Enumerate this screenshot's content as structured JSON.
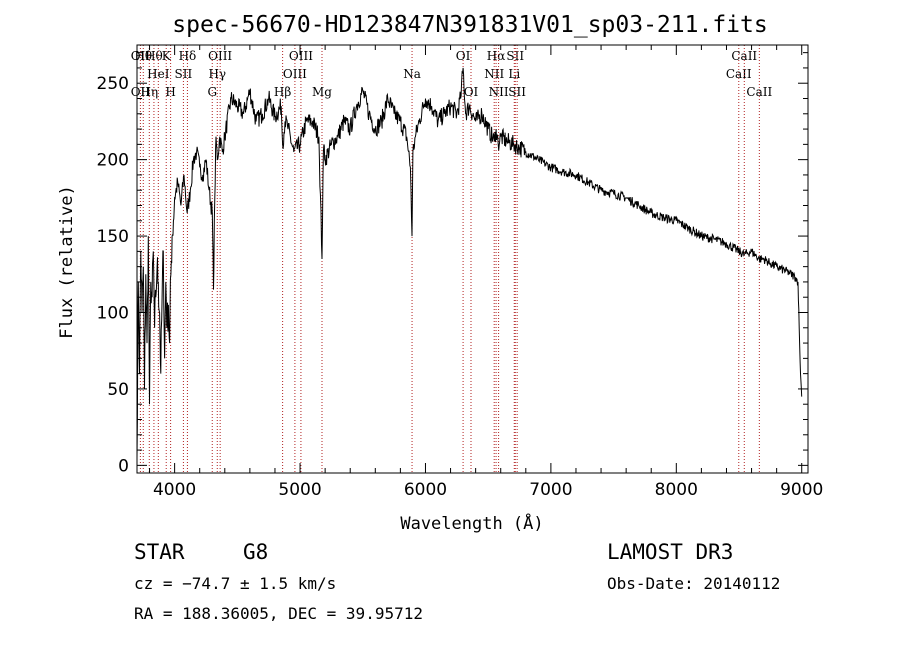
{
  "chart_data": {
    "type": "line",
    "title": "spec-56670-HD123847N391831V01_sp03-211.fits",
    "xlabel": "Wavelength (Å)",
    "ylabel": "Flux (relative)",
    "xlim": [
      3700,
      9050
    ],
    "ylim": [
      -5,
      275
    ],
    "xticks": [
      4000,
      5000,
      6000,
      7000,
      8000,
      9000
    ],
    "yticks": [
      0,
      50,
      100,
      150,
      200,
      250
    ],
    "grid": false,
    "line_color": "#000000",
    "marker_color": "#b22222",
    "series": [
      {
        "x": [
          3700,
          3710,
          3720,
          3730,
          3740,
          3750,
          3760,
          3770,
          3780,
          3790,
          3800,
          3810,
          3820,
          3830,
          3840,
          3850,
          3860,
          3870,
          3880,
          3890,
          3900,
          3910,
          3920,
          3930,
          3940,
          3950,
          3960,
          3970,
          3980,
          3990,
          4000,
          4025,
          4050,
          4075,
          4100,
          4125,
          4150,
          4175,
          4200,
          4225,
          4250,
          4275,
          4300,
          4310,
          4320,
          4330,
          4340,
          4360,
          4380,
          4400,
          4450,
          4500,
          4550,
          4600,
          4650,
          4700,
          4750,
          4800,
          4850,
          4861,
          4880,
          4900,
          4950,
          5000,
          5050,
          5100,
          5150,
          5175,
          5183,
          5190,
          5200,
          5250,
          5300,
          5350,
          5400,
          5450,
          5500,
          5550,
          5600,
          5650,
          5700,
          5750,
          5800,
          5850,
          5880,
          5893,
          5900,
          5920,
          5950,
          6000,
          6050,
          6100,
          6150,
          6200,
          6250,
          6280,
          6300,
          6320,
          6350,
          6400,
          6450,
          6500,
          6550,
          6563,
          6580,
          6600,
          6650,
          6700,
          6750,
          6800,
          6900,
          7000,
          7100,
          7200,
          7300,
          7400,
          7500,
          7600,
          7700,
          7800,
          7900,
          8000,
          8100,
          8200,
          8300,
          8400,
          8500,
          8542,
          8600,
          8662,
          8700,
          8750,
          8800,
          8850,
          8900,
          8950,
          8970,
          8980,
          8990,
          9000
        ],
        "y": [
          5,
          120,
          60,
          140,
          100,
          130,
          50,
          125,
          80,
          150,
          40,
          120,
          110,
          140,
          90,
          110,
          130,
          120,
          100,
          60,
          110,
          140,
          70,
          120,
          90,
          105,
          80,
          125,
          150,
          160,
          175,
          185,
          170,
          190,
          165,
          180,
          200,
          205,
          195,
          190,
          200,
          180,
          165,
          115,
          175,
          215,
          200,
          215,
          205,
          215,
          240,
          235,
          230,
          245,
          225,
          230,
          240,
          228,
          235,
          210,
          225,
          222,
          205,
          210,
          225,
          225,
          215,
          135,
          190,
          210,
          200,
          210,
          215,
          225,
          220,
          235,
          245,
          230,
          220,
          225,
          240,
          230,
          225,
          215,
          195,
          150,
          205,
          215,
          225,
          240,
          235,
          225,
          230,
          235,
          230,
          240,
          260,
          230,
          235,
          225,
          230,
          220,
          212,
          220,
          210,
          215,
          212,
          210,
          208,
          205,
          200,
          195,
          192,
          190,
          185,
          180,
          178,
          175,
          170,
          165,
          162,
          160,
          155,
          150,
          148,
          145,
          140,
          138,
          140,
          135,
          135,
          132,
          130,
          128,
          126,
          123,
          120,
          90,
          60,
          45
        ]
      }
    ],
    "line_markers": [
      {
        "x": 3727,
        "top": "OII",
        "mid": "",
        "low": "OII"
      },
      {
        "x": 3750,
        "top": "Hθ",
        "mid": "",
        "low": ""
      },
      {
        "x": 3798,
        "top": "",
        "mid": "",
        "low": "Hη"
      },
      {
        "x": 3835,
        "top": "Hθ",
        "mid": "",
        "low": ""
      },
      {
        "x": 3870,
        "top": "",
        "mid": "HeI",
        "low": ""
      },
      {
        "x": 3933,
        "top": "K",
        "mid": "",
        "low": ""
      },
      {
        "x": 3968,
        "top": "",
        "mid": "",
        "low": "H"
      },
      {
        "x": 4070,
        "top": "",
        "mid": "SII",
        "low": ""
      },
      {
        "x": 4102,
        "top": "Hδ",
        "mid": "",
        "low": ""
      },
      {
        "x": 4300,
        "top": "",
        "mid": "",
        "low": "G"
      },
      {
        "x": 4340,
        "top": "",
        "mid": "Hγ",
        "low": ""
      },
      {
        "x": 4363,
        "top": "OIII",
        "mid": "",
        "low": ""
      },
      {
        "x": 4861,
        "top": "",
        "mid": "",
        "low": "Hβ"
      },
      {
        "x": 4959,
        "top": "",
        "mid": "OIII",
        "low": ""
      },
      {
        "x": 5007,
        "top": "OIII",
        "mid": "",
        "low": ""
      },
      {
        "x": 5175,
        "top": "",
        "mid": "",
        "low": "Mg"
      },
      {
        "x": 5893,
        "top": "",
        "mid": "Na",
        "low": ""
      },
      {
        "x": 6300,
        "top": "OI",
        "mid": "",
        "low": ""
      },
      {
        "x": 6363,
        "top": "",
        "mid": "",
        "low": "OI"
      },
      {
        "x": 6548,
        "top": "",
        "mid": "NII",
        "low": ""
      },
      {
        "x": 6563,
        "top": "Hα",
        "mid": "",
        "low": ""
      },
      {
        "x": 6583,
        "top": "",
        "mid": "",
        "low": "NII"
      },
      {
        "x": 6708,
        "top": "",
        "mid": "Li",
        "low": ""
      },
      {
        "x": 6716,
        "top": "SII",
        "mid": "",
        "low": ""
      },
      {
        "x": 6731,
        "top": "",
        "mid": "",
        "low": "SII"
      },
      {
        "x": 8498,
        "top": "",
        "mid": "CaII",
        "low": ""
      },
      {
        "x": 8542,
        "top": "CaII",
        "mid": "",
        "low": ""
      },
      {
        "x": 8662,
        "top": "",
        "mid": "",
        "low": "CaII"
      }
    ]
  },
  "info": {
    "object_class": "STAR",
    "subclass": "G8",
    "survey": "LAMOST DR3",
    "cz": "cz = −74.7 ± 1.5 km/s",
    "obs_date": "Obs-Date: 20140112",
    "radec": "RA = 188.36005, DEC =  39.95712"
  }
}
